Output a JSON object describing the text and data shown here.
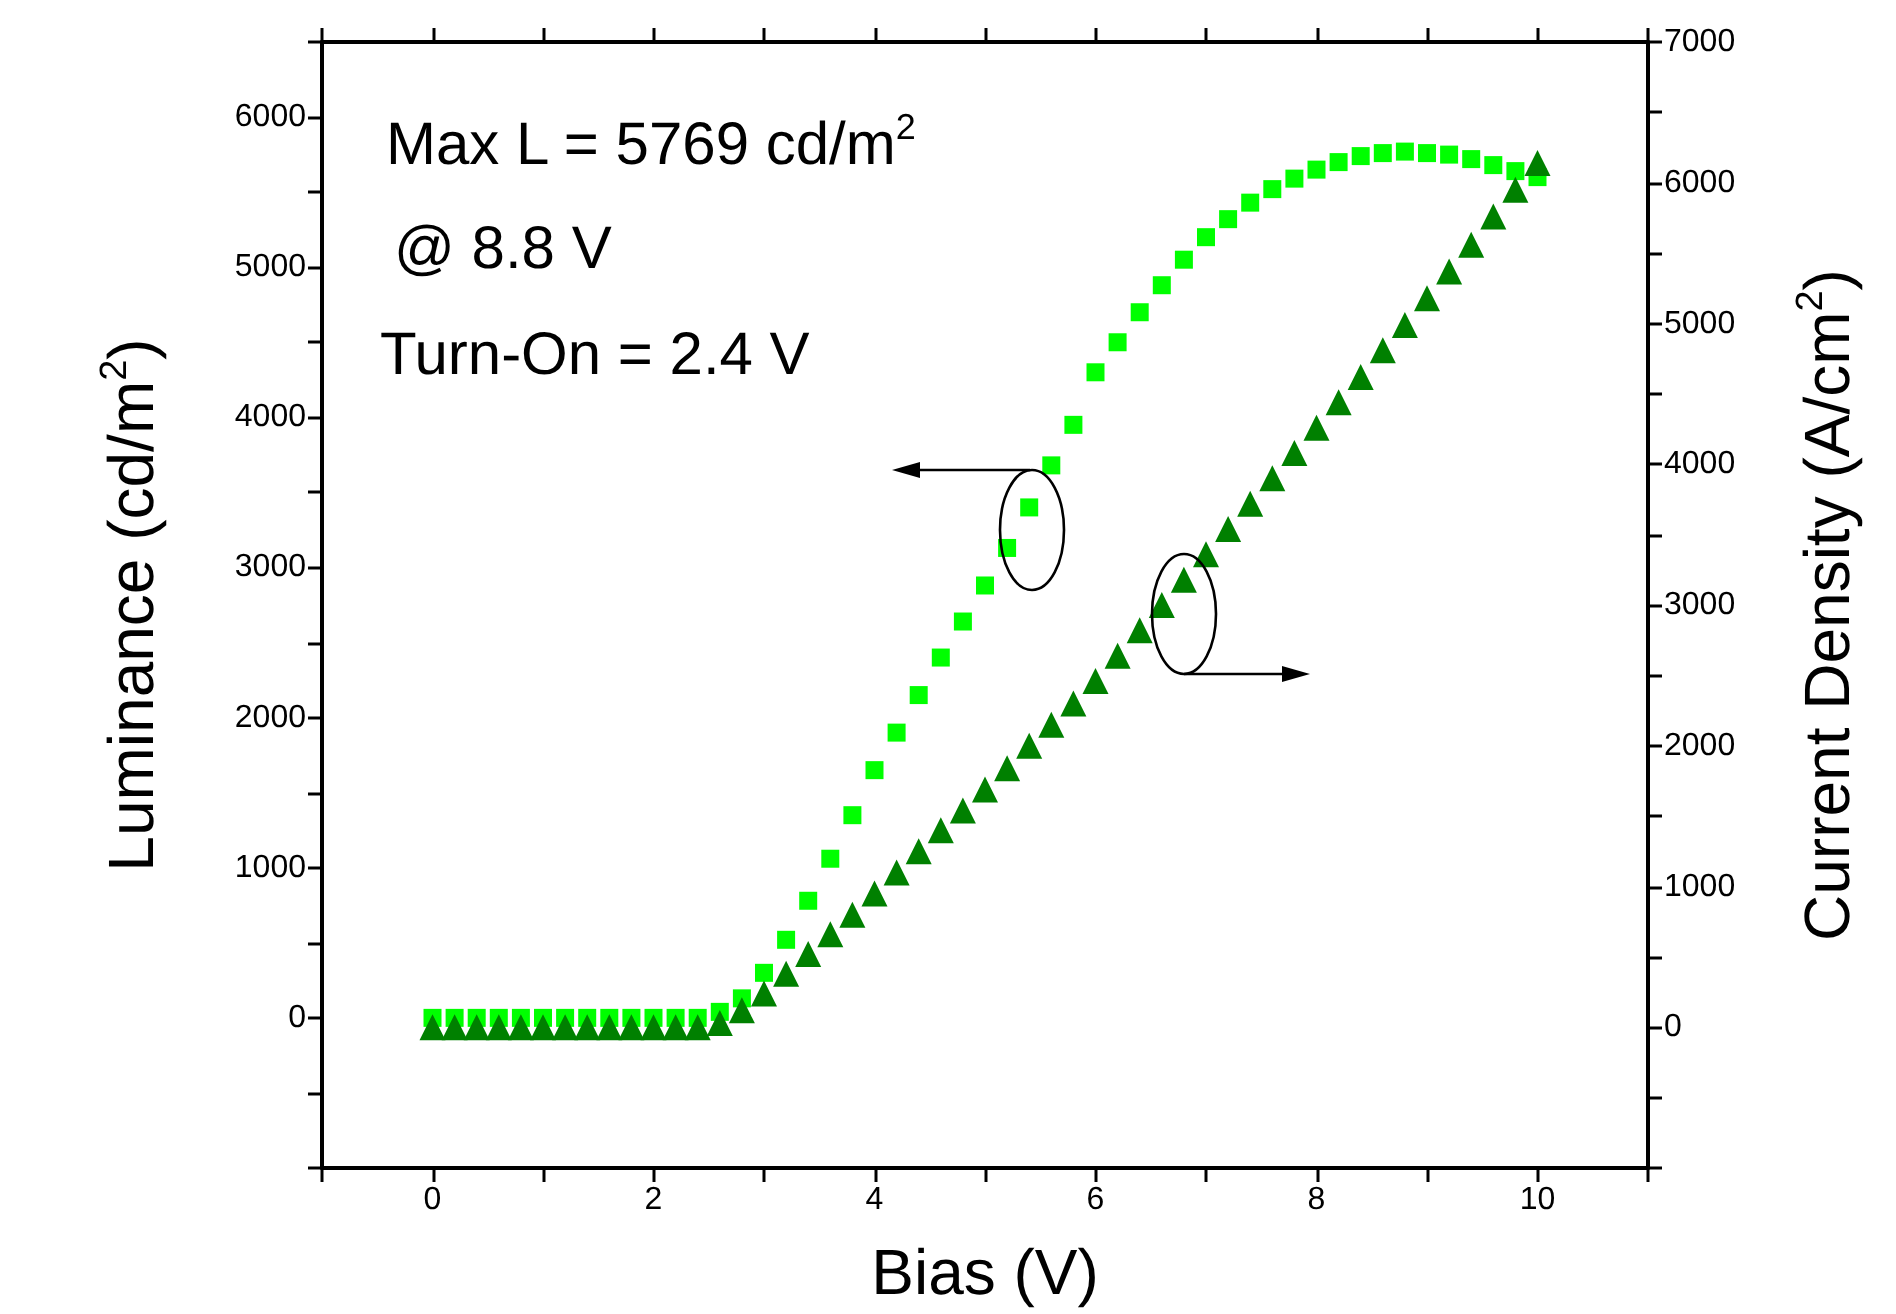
{
  "chart_data": {
    "type": "scatter",
    "xlabel": "Bias (V)",
    "ylabel": "Luminance (cd/m$^{2}$)",
    "y2label": "Current Density (A/cm$^{2}$)",
    "annotations": [
      "Max L = 5769 cd/m$^{2}$",
      "@ 8.8 V",
      "Turn-On = 2.4 V"
    ],
    "x": [
      0,
      0.2,
      0.4,
      0.6,
      0.8,
      1,
      1.2,
      1.4,
      1.6,
      1.8,
      2,
      2.2,
      2.4,
      2.6,
      2.8,
      3,
      3.2,
      3.4,
      3.6,
      3.8,
      4,
      4.2,
      4.4,
      4.6,
      4.8,
      5,
      5.2,
      5.4,
      5.6,
      5.8,
      6,
      6.2,
      6.4,
      6.6,
      6.8,
      7,
      7.2,
      7.4,
      7.6,
      7.8,
      8,
      8.2,
      8.4,
      8.6,
      8.8,
      9,
      9.2,
      9.4,
      9.6,
      9.8,
      10
    ],
    "series": [
      {
        "color": "#00ff00",
        "marker": "square",
        "values": [
          0,
          0,
          0,
          0,
          0,
          0,
          0,
          0,
          0,
          0,
          0,
          0,
          0,
          40,
          130,
          300,
          520,
          780,
          1060,
          1350,
          1650,
          1900,
          2150,
          2400,
          2640,
          2880,
          3130,
          3400,
          3680,
          3950,
          4300,
          4500,
          4700,
          4880,
          5050,
          5200,
          5320,
          5430,
          5520,
          5590,
          5650,
          5700,
          5740,
          5760,
          5770,
          5760,
          5750,
          5720,
          5680,
          5640,
          5600
        ]
      },
      {
        "color": "#008000",
        "marker": "triangle",
        "axis": "y2",
        "values": [
          0,
          0,
          0,
          0,
          0,
          0,
          0,
          0,
          0,
          0,
          0,
          0,
          0,
          30,
          120,
          240,
          380,
          520,
          660,
          800,
          950,
          1100,
          1250,
          1400,
          1540,
          1690,
          1840,
          2000,
          2150,
          2300,
          2460,
          2640,
          2820,
          3000,
          3180,
          3360,
          3540,
          3720,
          3900,
          4080,
          4260,
          4440,
          4620,
          4810,
          4990,
          5180,
          5370,
          5560,
          5760,
          5950,
          6140
        ]
      }
    ],
    "xlim": [
      -1,
      11
    ],
    "xticks": [
      {
        "value": -1,
        "label": null
      },
      0,
      {
        "value": 1,
        "label": null
      },
      2,
      {
        "value": 3,
        "label": null
      },
      4,
      {
        "value": 5,
        "label": null
      },
      6,
      {
        "value": 7,
        "label": null
      },
      8,
      {
        "value": 9,
        "label": null
      },
      10,
      {
        "value": 11,
        "label": null
      }
    ],
    "ylim": [
      -1000,
      6500
    ],
    "yticks": [
      {
        "value": -1000,
        "label": null
      },
      {
        "value": -500,
        "label": null
      },
      0,
      {
        "value": 500,
        "label": null
      },
      1000,
      {
        "value": 1500,
        "label": null
      },
      2000,
      {
        "value": 2500,
        "label": null
      },
      3000,
      {
        "value": 3500,
        "label": null
      },
      4000,
      {
        "value": 4500,
        "label": null
      },
      5000,
      {
        "value": 5500,
        "label": null
      },
      6000,
      {
        "value": 6500,
        "label": null
      }
    ],
    "y2lim": [
      -1000,
      7000
    ],
    "y2ticks": [
      {
        "value": -1000,
        "label": null
      },
      {
        "value": -500,
        "label": null
      },
      0,
      {
        "value": 500,
        "label": null
      },
      1000,
      {
        "value": 1500,
        "label": null
      },
      2000,
      {
        "value": 2500,
        "label": null
      },
      3000,
      {
        "value": 3500,
        "label": null
      },
      4000,
      {
        "value": 4500,
        "label": null
      },
      5000,
      {
        "value": 5500,
        "label": null
      },
      6000,
      {
        "value": 6500,
        "label": null
      },
      7000
    ],
    "grid": false
  }
}
